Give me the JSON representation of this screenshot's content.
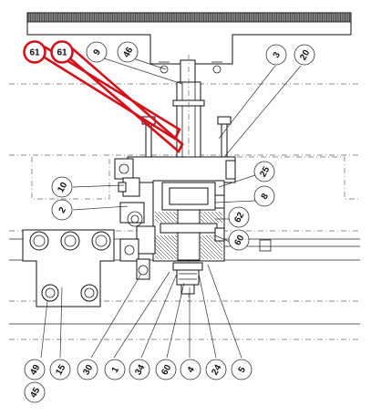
{
  "callouts": [
    {
      "label": "61",
      "highlight": true
    },
    {
      "label": "61",
      "highlight": true
    },
    {
      "label": "9",
      "highlight": false
    },
    {
      "label": "46",
      "highlight": false
    },
    {
      "label": "3",
      "highlight": false
    },
    {
      "label": "20",
      "highlight": false
    },
    {
      "label": "25",
      "highlight": false
    },
    {
      "label": "8",
      "highlight": false
    },
    {
      "label": "62",
      "highlight": false
    },
    {
      "label": "60",
      "highlight": false
    },
    {
      "label": "10",
      "highlight": false
    },
    {
      "label": "2",
      "highlight": false
    },
    {
      "label": "49",
      "highlight": false
    },
    {
      "label": "45",
      "highlight": false
    },
    {
      "label": "15",
      "highlight": false
    },
    {
      "label": "30",
      "highlight": false
    },
    {
      "label": "1",
      "highlight": false
    },
    {
      "label": "34",
      "highlight": false
    },
    {
      "label": "60",
      "highlight": false
    },
    {
      "label": "4",
      "highlight": false
    },
    {
      "label": "24",
      "highlight": false
    },
    {
      "label": "5",
      "highlight": false
    }
  ],
  "colors": {
    "highlight": "#d2121b",
    "line": "#111111"
  }
}
